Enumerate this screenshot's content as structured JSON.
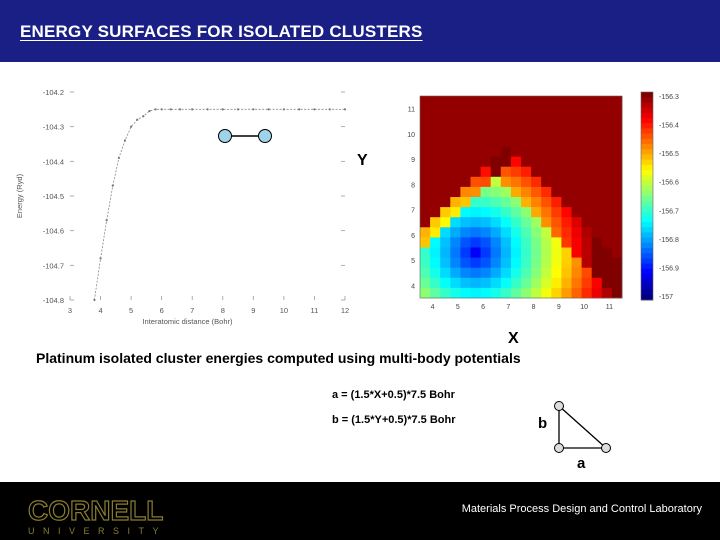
{
  "header": {
    "title": "ENERGY SURFACES FOR ISOLATED CLUSTERS"
  },
  "caption": "Platinum isolated cluster energies computed using multi-body potentials",
  "formulas": {
    "a": "a = (1.5*X+0.5)*7.5 Bohr",
    "b": "b = (1.5*Y+0.5)*7.5 Bohr"
  },
  "axis_letters": {
    "y": "Y",
    "x": "X"
  },
  "triangle_labels": {
    "a": "a",
    "b": "b"
  },
  "footer": {
    "logo_main": "CORNELL",
    "logo_sub": "UNIVERSITY",
    "lab": "Materials Process Design and Control Laboratory"
  },
  "colors": {
    "header_bg": "#1a1f86",
    "footer_bg": "#000000",
    "node_fill": "#9fd3ea",
    "logo_gold": "#8a7d2e"
  },
  "chart_data": [
    {
      "type": "line",
      "xlabel": "Interatomic distance (Bohr)",
      "ylabel": "Energy (Ryd)",
      "xticks": [
        "3",
        "4",
        "5",
        "6",
        "7",
        "8",
        "9",
        "10",
        "11",
        "12"
      ],
      "yticks": [
        "-104.2",
        "-104.3",
        "-104.4",
        "-104.5",
        "-104.6",
        "-104.7",
        "-104.8"
      ],
      "xlim": [
        3,
        12
      ],
      "ylim": [
        -104.8,
        -104.2
      ],
      "x": [
        3.8,
        4.0,
        4.2,
        4.4,
        4.6,
        4.8,
        5.0,
        5.2,
        5.4,
        5.6,
        5.8,
        6.0,
        6.3,
        6.6,
        7.0,
        7.5,
        8.0,
        8.5,
        9.0,
        9.5,
        10.0,
        10.5,
        11.0,
        11.5,
        12.0
      ],
      "y": [
        -104.8,
        -104.68,
        -104.57,
        -104.47,
        -104.39,
        -104.34,
        -104.3,
        -104.28,
        -104.27,
        -104.255,
        -104.25,
        -104.25,
        -104.25,
        -104.25,
        -104.25,
        -104.25,
        -104.25,
        -104.25,
        -104.25,
        -104.25,
        -104.25,
        -104.25,
        -104.25,
        -104.25,
        -104.25
      ]
    },
    {
      "type": "heatmap",
      "xticks": [
        "4",
        "5",
        "6",
        "7",
        "8",
        "9",
        "10",
        "11"
      ],
      "yticks": [
        "4",
        "5",
        "6",
        "7",
        "8",
        "9",
        "10",
        "11"
      ],
      "colorbar_ticks": [
        "-156.3",
        "-156.4",
        "-156.5",
        "-156.6",
        "-156.7",
        "-156.8",
        "-156.9",
        "-157"
      ],
      "clim": [
        -157,
        -156.3
      ]
    }
  ]
}
